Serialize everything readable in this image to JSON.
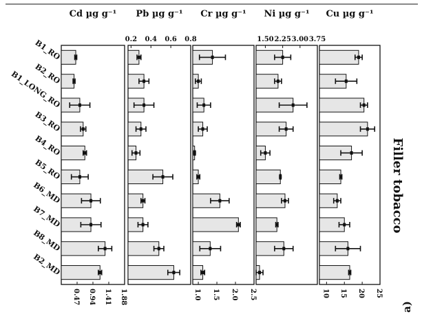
{
  "chart_data": {
    "type": "bar",
    "orientation": "horizontal-panels",
    "title": "Filler tobacco",
    "panel_tag": "a)",
    "categories": [
      "B1_RO",
      "B2_RO",
      "B1_LONG_RO",
      "B3_RO",
      "B4_RO",
      "B5_RO",
      "B6_MD",
      "B7_MD",
      "B8_MD",
      "B2_MD"
    ],
    "panels": [
      {
        "label": "Cd µg g⁻¹",
        "ticks": [
          "0.47",
          "0.94",
          "1.41",
          "1.88"
        ],
        "tick_values": [
          0.47,
          0.94,
          1.41,
          1.88
        ],
        "tick_side": "bottom",
        "xlim": [
          0,
          1.88
        ],
        "values": [
          0.43,
          0.38,
          0.55,
          0.65,
          0.7,
          0.55,
          0.88,
          0.88,
          1.3,
          1.15
        ],
        "errors": [
          0.03,
          0.03,
          0.3,
          0.08,
          0.05,
          0.25,
          0.28,
          0.3,
          0.2,
          0.05
        ]
      },
      {
        "label": "Pb µg g⁻¹",
        "ticks": [
          "0.2",
          "0.4",
          "0.6",
          "0.8"
        ],
        "tick_values": [
          0.2,
          0.4,
          0.6,
          0.8
        ],
        "tick_side": "top",
        "xlim": [
          0.17,
          0.8
        ],
        "values": [
          0.28,
          0.33,
          0.33,
          0.3,
          0.25,
          0.52,
          0.32,
          0.32,
          0.48,
          0.63
        ],
        "errors": [
          0.02,
          0.05,
          0.1,
          0.05,
          0.04,
          0.1,
          0.02,
          0.05,
          0.05,
          0.06
        ]
      },
      {
        "label": "Cr µg g⁻¹",
        "ticks": [
          "1.0",
          "1.5",
          "2.0",
          "2.5"
        ],
        "tick_values": [
          1.0,
          1.5,
          2.0,
          2.5
        ],
        "tick_side": "bottom",
        "xlim": [
          0.85,
          2.5
        ],
        "values": [
          1.38,
          1.0,
          1.15,
          1.12,
          0.9,
          1.0,
          1.58,
          2.08,
          1.32,
          1.12
        ],
        "errors": [
          0.35,
          0.08,
          0.18,
          0.12,
          0.02,
          0.04,
          0.25,
          0.05,
          0.28,
          0.05
        ]
      },
      {
        "label": "Ni µg g⁻¹",
        "ticks": [
          "1.50",
          "2.25",
          "3.00",
          "3.75"
        ],
        "tick_values": [
          1.5,
          2.25,
          3.0,
          3.75
        ],
        "tick_side": "top",
        "xlim": [
          1.1,
          3.75
        ],
        "values": [
          2.25,
          2.05,
          2.7,
          2.4,
          1.5,
          2.15,
          2.35,
          2.0,
          2.3,
          1.25
        ],
        "errors": [
          0.35,
          0.15,
          0.6,
          0.3,
          0.2,
          0.03,
          0.15,
          0.05,
          0.4,
          0.15
        ]
      },
      {
        "label": "Cu µg g⁻¹",
        "ticks": [
          "10",
          "15",
          "20",
          "25"
        ],
        "tick_values": [
          10,
          15,
          20,
          25
        ],
        "tick_side": "bottom",
        "xlim": [
          8,
          25
        ],
        "values": [
          19,
          15.5,
          20.5,
          21.5,
          17,
          14,
          13,
          15,
          16,
          16.5
        ],
        "errors": [
          1,
          3,
          1,
          2,
          3,
          0.3,
          1,
          1.5,
          3.5,
          0.3
        ]
      }
    ]
  }
}
